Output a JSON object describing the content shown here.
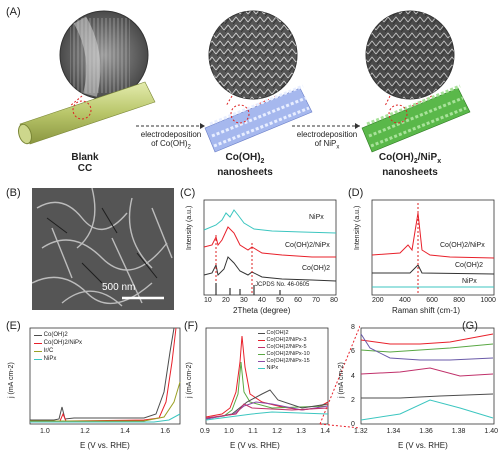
{
  "panelA": {
    "label": "(A)",
    "blank": [
      "Blank",
      "CC"
    ],
    "coh2": [
      "Co(OH)",
      "nanosheets"
    ],
    "comp": [
      "Co(OH)",
      "/NiP",
      "nanosheets"
    ],
    "arrow1": [
      "electrodeposition",
      "of Co(OH)"
    ],
    "arrow2": [
      "electrodeposition",
      "of NiP"
    ]
  },
  "panelB": {
    "label": "(B)",
    "scale": "500 nm"
  },
  "panelC": {
    "label": "(C)",
    "ylabel": "Intensity (a.u.)",
    "xlabel": "2Theta (degree)",
    "xticks": [
      "10",
      "20",
      "30",
      "40",
      "50",
      "60",
      "70",
      "80"
    ],
    "curves": [
      "NiPx",
      "Co(OH)2/NiPx",
      "Co(OH)2"
    ],
    "jcpds": "JCPDS No. 46-0605"
  },
  "panelD": {
    "label": "(D)",
    "ylabel": "Intensity (a.u.)",
    "xlabel": "Raman shift (cm-1)",
    "xticks": [
      "200",
      "400",
      "600",
      "800",
      "1000"
    ],
    "curves": [
      "Co(OH)2/NiPx",
      "Co(OH)2",
      "NiPx"
    ]
  },
  "panelE": {
    "label": "(E)",
    "ylabel": "j (mA cm-2)",
    "xlabel": "E (V vs. RHE)",
    "xticks": [
      "1.0",
      "1.2",
      "1.4",
      "1.6"
    ],
    "legend": [
      "Co(OH)2",
      "Co(OH)2/NiPx",
      "Ir/C",
      "NiPx"
    ]
  },
  "panelF": {
    "label": "(F)",
    "ylabel": "j (mA cm-2)",
    "xlabel": "E (V vs. RHE)",
    "xticks": [
      "0.9",
      "1.0",
      "1.1",
      "1.2",
      "1.3",
      "1.4"
    ],
    "legend": [
      "Co(OH)2",
      "Co(OH)2/NiPx-3",
      "Co(OH)2/NiPx-5",
      "Co(OH)2/NiPx-10",
      "Co(OH)2/NiPx-15",
      "NiPx"
    ]
  },
  "panelG": {
    "label": "(G)",
    "ylabel": "j (mA cm-2)",
    "xlabel": "E (V vs. RHE)",
    "xticks": [
      "1.32",
      "1.34",
      "1.36",
      "1.38",
      "1.40"
    ],
    "yticks": [
      "0",
      "2",
      "4",
      "6",
      "8"
    ]
  },
  "colors": {
    "coh2": "#4d4d4d",
    "composite": "#e8202a",
    "irc": "#9aa024",
    "nip": "#3cc6c0",
    "nip3": "#e8202a",
    "nip5": "#c0306a",
    "nip10": "#5aa844",
    "nip15": "#8a4aa8",
    "gray_cc": "#bfcf7a",
    "blue_ns": "#8aa0e8",
    "green_ns": "#4aa83a"
  }
}
